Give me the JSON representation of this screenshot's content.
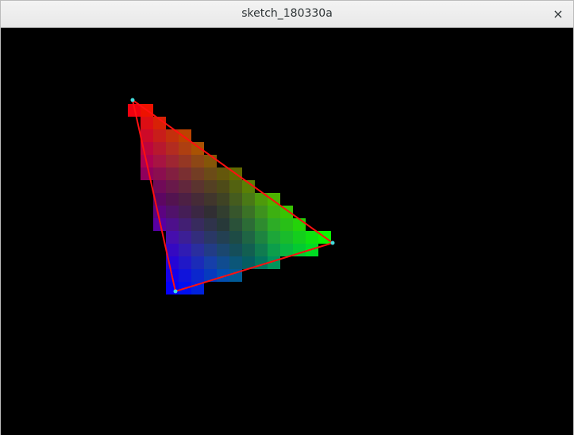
{
  "window": {
    "title": "sketch_180330a",
    "close_glyph": "×"
  },
  "sketch": {
    "background": "#000000",
    "outline_color": "#ff1010",
    "vertex_color": "#44dddd",
    "vertex_colors": {
      "a": "#ff0000",
      "b": "#00ff00",
      "c": "#0000ff"
    }
  }
}
